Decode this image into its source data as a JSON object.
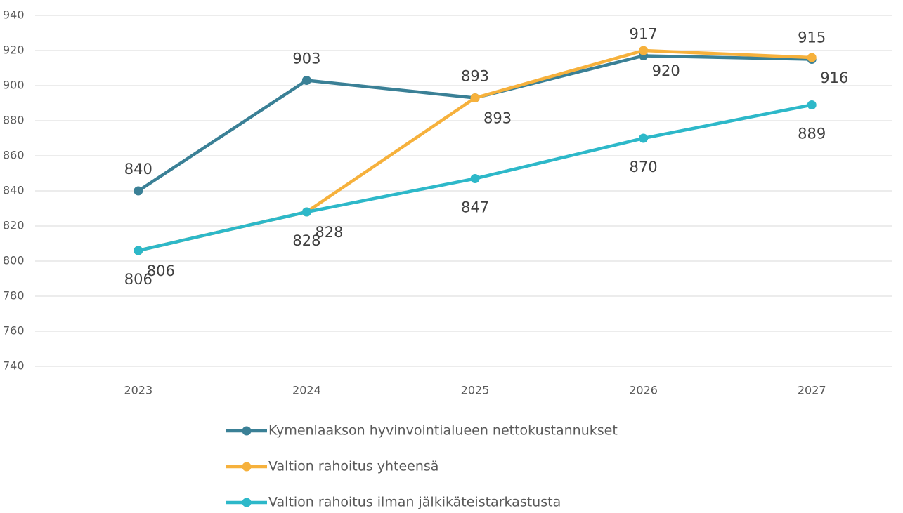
{
  "chart_data": {
    "type": "line",
    "categories": [
      "2023",
      "2024",
      "2025",
      "2026",
      "2027"
    ],
    "series": [
      {
        "name": "Kymenlaakson hyvinvointialueen nettokustannukset",
        "color": "#3a8096",
        "values": [
          840,
          903,
          893,
          917,
          915
        ]
      },
      {
        "name": "Valtion rahoitus yhteensä",
        "color": "#f6b13c",
        "values": [
          806,
          828,
          893,
          920,
          916
        ]
      },
      {
        "name": "Valtion rahoitus ilman jälkikäteistarkastusta",
        "color": "#2db8c9",
        "values": [
          806,
          828,
          847,
          870,
          889
        ]
      }
    ],
    "ylim": [
      740,
      940
    ],
    "yticks": [
      740,
      760,
      780,
      800,
      820,
      840,
      860,
      880,
      900,
      920,
      940
    ],
    "grid": true
  }
}
